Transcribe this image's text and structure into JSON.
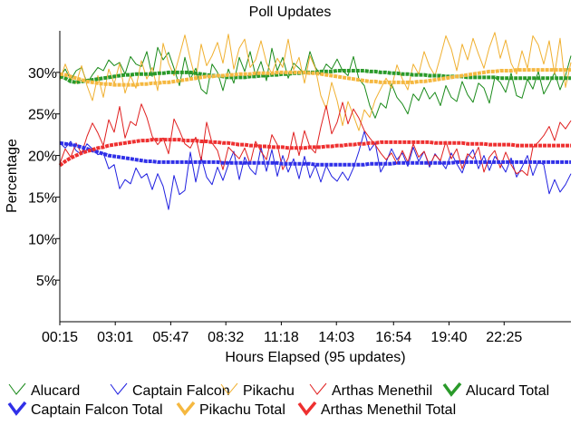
{
  "chart_data": {
    "type": "line",
    "title": "Poll Updates",
    "xlabel": "Hours Elapsed (95 updates)",
    "ylabel": "Percentage",
    "ylim": [
      0,
      35
    ],
    "yticks": [
      5,
      10,
      15,
      20,
      25,
      30
    ],
    "ytick_labels": [
      "5%",
      "10%",
      "15%",
      "20%",
      "25%",
      "30%"
    ],
    "xlim": [
      0.25,
      25.75
    ],
    "xticks": [
      0.25,
      3.0167,
      5.7833,
      8.5333,
      11.3,
      14.05,
      16.9,
      19.6667,
      22.4167
    ],
    "xtick_labels": [
      "00:15",
      "03:01",
      "05:47",
      "08:32",
      "11:18",
      "14:03",
      "16:54",
      "19:40",
      "22:25"
    ],
    "grid": false,
    "legend_position": "bottom",
    "series": [
      {
        "name": "Alucard",
        "style": "thin",
        "color": "#1a8a1a",
        "values": [
          29.5,
          30.4,
          29.1,
          30.2,
          30.6,
          28.7,
          29.7,
          30.6,
          30.2,
          31.5,
          30.8,
          31.2,
          29.8,
          31.9,
          31.0,
          30.7,
          32.5,
          29.5,
          33.0,
          31.5,
          32.4,
          30.5,
          28.4,
          31.8,
          29.2,
          30.5,
          28.0,
          27.4,
          31.0,
          30.0,
          27.8,
          30.4,
          28.7,
          31.8,
          30.1,
          32.5,
          29.6,
          31.3,
          29.0,
          32.9,
          30.2,
          31.8,
          29.3,
          31.1,
          30.5,
          29.8,
          32.5,
          30.6,
          29.7,
          31.0,
          30.4,
          31.6,
          30.2,
          29.6,
          31.9,
          29.2,
          28.4,
          26.0,
          24.5,
          26.3,
          25.7,
          28.6,
          27.0,
          26.2,
          25.0,
          27.4,
          26.6,
          28.2,
          26.8,
          27.6,
          26.0,
          28.4,
          27.0,
          26.5,
          28.9,
          27.3,
          26.4,
          28.7,
          28.1,
          26.3,
          29.4,
          28.8,
          27.6,
          29.9,
          27.2,
          26.9,
          29.2,
          28.0,
          30.1,
          27.4,
          28.6,
          30.0,
          27.9,
          29.6,
          32.0
        ]
      },
      {
        "name": "Captain Falcon",
        "style": "thin",
        "color": "#2020e0",
        "values": [
          21.5,
          20.9,
          21.7,
          20.6,
          20.1,
          21.4,
          20.8,
          20.1,
          20.3,
          18.4,
          18.9,
          16.0,
          17.1,
          16.6,
          18.5,
          17.3,
          17.8,
          15.9,
          17.8,
          16.3,
          13.5,
          17.6,
          15.3,
          15.8,
          20.4,
          16.8,
          19.8,
          17.4,
          16.5,
          18.6,
          17.0,
          18.9,
          20.5,
          17.1,
          19.8,
          18.4,
          17.7,
          21.0,
          18.1,
          20.7,
          17.5,
          20.0,
          18.0,
          19.6,
          17.2,
          19.9,
          17.3,
          18.8,
          16.8,
          18.8,
          17.5,
          16.9,
          18.0,
          17.0,
          18.5,
          20.5,
          22.9,
          20.6,
          21.5,
          18.0,
          19.2,
          20.8,
          19.5,
          20.3,
          18.7,
          21.0,
          19.3,
          20.5,
          18.6,
          20.2,
          19.3,
          18.4,
          20.3,
          19.0,
          17.9,
          19.8,
          20.7,
          18.4,
          20.0,
          18.2,
          19.9,
          19.1,
          18.0,
          19.7,
          17.4,
          18.6,
          20.0,
          17.6,
          19.3,
          18.9,
          15.4,
          17.1,
          15.6,
          16.5,
          17.8
        ]
      },
      {
        "name": "Pikachu",
        "style": "thin",
        "color": "#f0b030",
        "values": [
          29.0,
          31.0,
          29.3,
          28.7,
          30.8,
          28.4,
          26.6,
          29.6,
          27.0,
          30.4,
          28.6,
          31.1,
          27.5,
          29.6,
          28.1,
          31.4,
          29.2,
          30.6,
          27.8,
          33.5,
          31.1,
          29.6,
          32.0,
          34.5,
          31.6,
          29.1,
          33.4,
          30.8,
          32.0,
          33.6,
          31.1,
          34.6,
          30.4,
          32.9,
          34.0,
          30.6,
          31.5,
          33.8,
          31.2,
          29.8,
          31.7,
          30.6,
          34.0,
          30.3,
          31.8,
          28.7,
          32.0,
          30.5,
          27.2,
          25.6,
          28.8,
          26.6,
          23.6,
          26.5,
          24.8,
          23.0,
          25.5,
          24.6,
          26.7,
          28.0,
          29.3,
          28.1,
          30.9,
          29.2,
          27.9,
          31.0,
          29.8,
          32.5,
          30.7,
          29.6,
          31.9,
          34.4,
          32.8,
          30.2,
          33.4,
          31.5,
          34.1,
          32.2,
          30.5,
          33.0,
          34.8,
          31.7,
          33.9,
          31.1,
          29.8,
          32.6,
          30.5,
          34.4,
          33.3,
          31.0,
          33.8,
          29.8,
          34.1,
          28.2,
          31.2
        ]
      },
      {
        "name": "Arthas Menethil",
        "style": "thin",
        "color": "#e02020",
        "values": [
          19.0,
          20.8,
          19.8,
          21.5,
          20.2,
          22.3,
          23.9,
          22.7,
          21.2,
          24.3,
          22.8,
          25.9,
          22.1,
          24.1,
          23.6,
          26.2,
          24.6,
          22.3,
          21.3,
          22.1,
          20.2,
          24.4,
          23.0,
          21.4,
          20.9,
          22.2,
          19.4,
          24.0,
          21.5,
          20.6,
          18.3,
          21.0,
          20.3,
          19.6,
          20.9,
          19.0,
          21.7,
          20.5,
          19.5,
          22.5,
          21.3,
          18.3,
          19.7,
          22.8,
          20.0,
          23.0,
          21.0,
          20.3,
          23.4,
          26.0,
          22.6,
          24.0,
          26.4,
          23.8,
          25.6,
          24.5,
          23.0,
          22.1,
          21.3,
          20.3,
          19.5,
          20.3,
          19.0,
          20.6,
          19.2,
          21.4,
          19.8,
          20.5,
          18.8,
          20.1,
          19.4,
          21.7,
          19.6,
          20.8,
          18.4,
          20.2,
          19.6,
          21.0,
          18.0,
          19.8,
          20.6,
          18.5,
          20.4,
          18.9,
          17.8,
          18.2,
          17.6,
          21.0,
          21.6,
          22.4,
          23.5,
          21.8,
          24.0,
          23.2,
          24.2
        ]
      },
      {
        "name": "Alucard Total",
        "style": "thick",
        "color": "#2a9a2a",
        "values": [
          29.5,
          29.3,
          28.9,
          28.8,
          28.9,
          29.0,
          29.1,
          29.2,
          29.3,
          29.4,
          29.5,
          29.6,
          29.7,
          29.7,
          29.8,
          29.8,
          29.8,
          29.8,
          29.9,
          29.9,
          30.0,
          30.0,
          30.0,
          30.0,
          30.0,
          29.9,
          29.8,
          29.7,
          29.6,
          29.6,
          29.5,
          29.4,
          29.4,
          29.4,
          29.4,
          29.5,
          29.5,
          29.6,
          29.6,
          29.7,
          29.7,
          29.8,
          29.8,
          29.9,
          29.9,
          30.0,
          30.0,
          30.0,
          30.1,
          30.1,
          30.1,
          30.2,
          30.2,
          30.2,
          30.2,
          30.2,
          30.2,
          30.1,
          30.1,
          30.0,
          30.0,
          29.9,
          29.9,
          29.8,
          29.8,
          29.7,
          29.7,
          29.7,
          29.6,
          29.6,
          29.6,
          29.5,
          29.5,
          29.5,
          29.5,
          29.4,
          29.4,
          29.4,
          29.4,
          29.4,
          29.4,
          29.3,
          29.3,
          29.3,
          29.3,
          29.3,
          29.3,
          29.3,
          29.3,
          29.3,
          29.3,
          29.3,
          29.3,
          29.3,
          29.3
        ]
      },
      {
        "name": "Captain Falcon Total",
        "style": "thick",
        "color": "#3030e8",
        "values": [
          21.5,
          21.4,
          21.3,
          21.2,
          21.0,
          20.8,
          20.6,
          20.4,
          20.2,
          20.0,
          19.9,
          19.8,
          19.7,
          19.6,
          19.5,
          19.4,
          19.3,
          19.3,
          19.2,
          19.2,
          19.2,
          19.2,
          19.2,
          19.2,
          19.2,
          19.2,
          19.2,
          19.2,
          19.2,
          19.2,
          19.1,
          19.1,
          19.1,
          19.1,
          19.1,
          19.1,
          19.1,
          19.1,
          19.1,
          19.1,
          19.1,
          19.0,
          19.0,
          19.0,
          19.0,
          19.0,
          19.0,
          18.9,
          18.9,
          18.9,
          18.9,
          18.9,
          18.9,
          18.9,
          18.9,
          18.9,
          18.9,
          19.0,
          19.0,
          19.0,
          19.0,
          19.0,
          19.1,
          19.1,
          19.1,
          19.1,
          19.1,
          19.1,
          19.1,
          19.1,
          19.1,
          19.1,
          19.1,
          19.2,
          19.2,
          19.2,
          19.2,
          19.2,
          19.2,
          19.2,
          19.2,
          19.2,
          19.2,
          19.2,
          19.2,
          19.2,
          19.2,
          19.2,
          19.2,
          19.2,
          19.2,
          19.2,
          19.2,
          19.2,
          19.2
        ]
      },
      {
        "name": "Pikachu Total",
        "style": "thick",
        "color": "#f5b840",
        "values": [
          29.8,
          29.7,
          29.5,
          29.3,
          29.1,
          28.9,
          28.8,
          28.7,
          28.6,
          28.6,
          28.5,
          28.5,
          28.5,
          28.5,
          28.5,
          28.6,
          28.6,
          28.7,
          28.7,
          28.8,
          28.8,
          28.9,
          29.0,
          29.1,
          29.2,
          29.3,
          29.4,
          29.5,
          29.5,
          29.6,
          29.6,
          29.7,
          29.7,
          29.8,
          29.8,
          29.8,
          29.9,
          29.9,
          29.9,
          29.9,
          30.0,
          30.0,
          30.0,
          30.0,
          30.0,
          30.0,
          29.9,
          29.9,
          29.8,
          29.7,
          29.6,
          29.5,
          29.4,
          29.3,
          29.2,
          29.1,
          29.0,
          28.9,
          28.9,
          28.8,
          28.8,
          28.8,
          28.8,
          28.8,
          28.8,
          28.8,
          28.9,
          28.9,
          29.0,
          29.1,
          29.2,
          29.3,
          29.4,
          29.5,
          29.6,
          29.7,
          29.8,
          29.9,
          30.0,
          30.1,
          30.1,
          30.2,
          30.2,
          30.2,
          30.3,
          30.3,
          30.3,
          30.3,
          30.3,
          30.3,
          30.3,
          30.3,
          30.3,
          30.3,
          30.3
        ]
      },
      {
        "name": "Arthas Menethil Total",
        "style": "thick",
        "color": "#ee3030",
        "values": [
          18.8,
          19.3,
          19.7,
          20.0,
          20.3,
          20.5,
          20.7,
          20.9,
          21.0,
          21.2,
          21.3,
          21.4,
          21.5,
          21.6,
          21.7,
          21.8,
          21.8,
          21.9,
          21.9,
          21.9,
          21.9,
          21.9,
          21.9,
          21.8,
          21.8,
          21.8,
          21.7,
          21.7,
          21.6,
          21.6,
          21.5,
          21.5,
          21.4,
          21.3,
          21.3,
          21.2,
          21.2,
          21.1,
          21.1,
          21.0,
          21.0,
          21.0,
          20.9,
          20.9,
          20.9,
          20.9,
          21.0,
          21.0,
          21.0,
          21.1,
          21.1,
          21.2,
          21.2,
          21.3,
          21.3,
          21.4,
          21.4,
          21.5,
          21.5,
          21.6,
          21.6,
          21.6,
          21.6,
          21.6,
          21.6,
          21.6,
          21.6,
          21.6,
          21.6,
          21.5,
          21.5,
          21.5,
          21.5,
          21.5,
          21.5,
          21.4,
          21.4,
          21.4,
          21.4,
          21.3,
          21.3,
          21.3,
          21.3,
          21.3,
          21.2,
          21.2,
          21.2,
          21.2,
          21.2,
          21.2,
          21.2,
          21.2,
          21.2,
          21.2,
          21.2
        ]
      }
    ]
  }
}
